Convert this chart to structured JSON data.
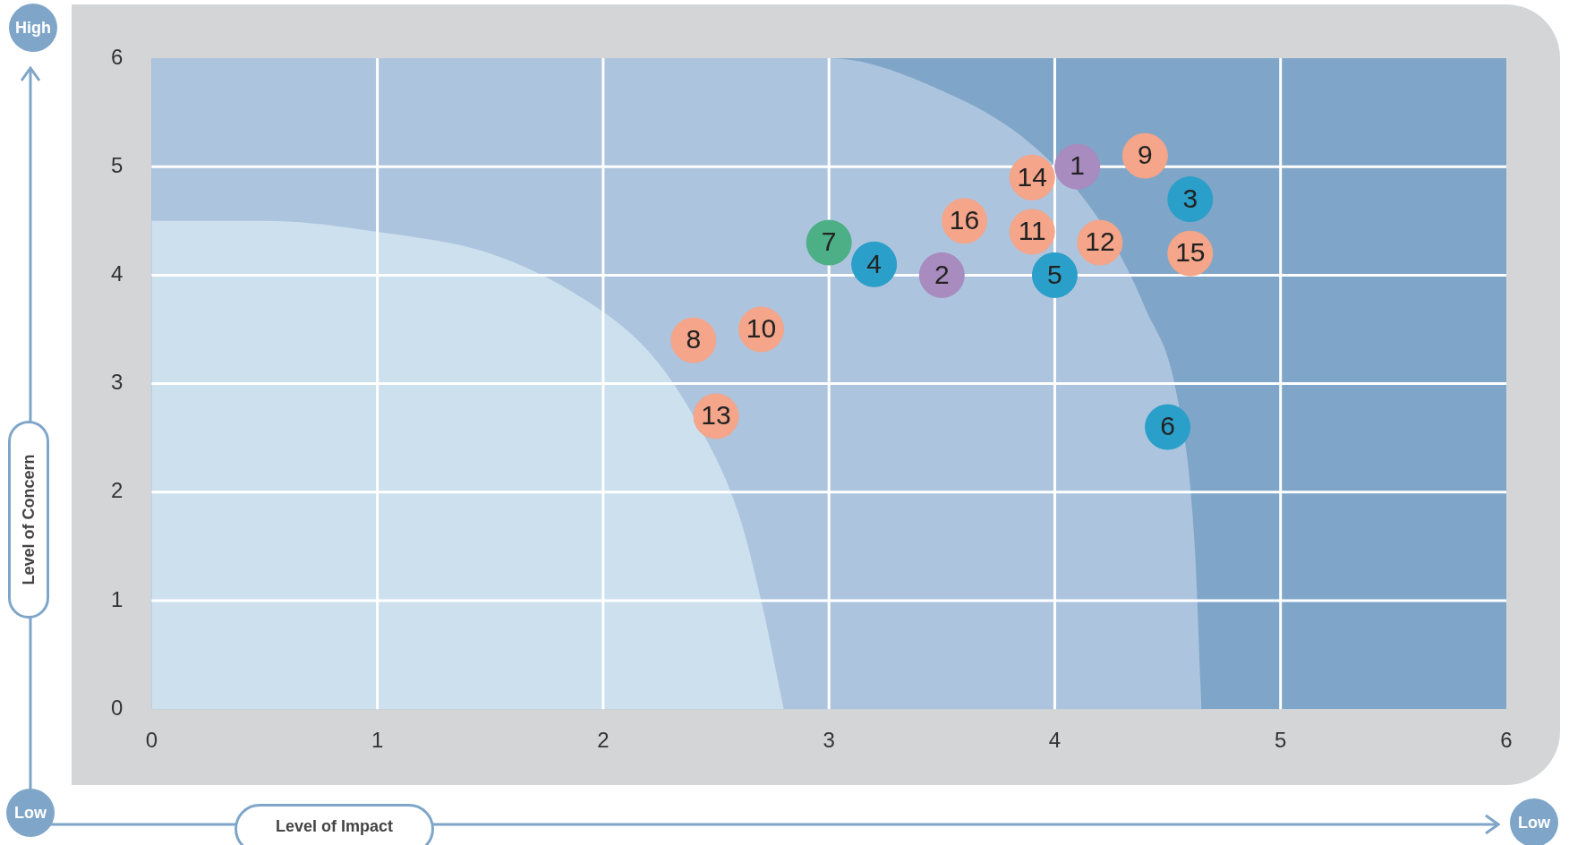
{
  "chart_data": {
    "type": "scatter",
    "xlabel": "Level of Impact",
    "ylabel": "Level of Concern",
    "series": [
      {
        "type": "area",
        "color": "#7fa6c8",
        "x": [
          0,
          6
        ],
        "values": [
          6,
          6
        ]
      },
      {
        "type": "area",
        "color": "#adc4de",
        "x": [
          0,
          3.0,
          3.5,
          3.9,
          4.2,
          4.4,
          4.55,
          4.62,
          4.65
        ],
        "values": [
          6,
          6,
          5.7,
          5.2,
          4.5,
          3.7,
          2.8,
          1.5,
          0
        ]
      },
      {
        "type": "area",
        "color": "#cce0ee",
        "x": [
          0,
          0.5,
          1,
          1.5,
          1.9,
          2.2,
          2.4,
          2.6,
          2.7,
          2.8
        ],
        "values": [
          4.5,
          4.5,
          4.4,
          4.2,
          3.8,
          3.3,
          2.7,
          1.8,
          1,
          0
        ]
      },
      {
        "marker": "circle",
        "x": [
          4.1,
          3.5,
          4.6,
          3.2,
          4.0,
          4.5,
          3.0,
          2.4,
          4.4,
          2.7,
          3.9,
          4.2,
          2.5,
          3.9,
          4.6,
          3.6
        ],
        "values": [
          5.0,
          4.0,
          4.7,
          4.1,
          4.0,
          2.6,
          4.3,
          3.4,
          5.1,
          3.5,
          4.4,
          4.3,
          2.7,
          4.9,
          4.2,
          4.5
        ],
        "colors": [
          "#a88bbf",
          "#a88bbf",
          "#2a9fc9",
          "#2a9fc9",
          "#2a9fc9",
          "#2a9fc9",
          "#4caf85",
          "#f4a58a",
          "#f4a58a",
          "#f4a58a",
          "#f4a58a",
          "#f4a58a",
          "#f4a58a",
          "#f4a58a",
          "#f4a58a",
          "#f4a58a"
        ]
      }
    ],
    "xlim": [
      0,
      6
    ],
    "ylim": [
      0,
      6
    ],
    "xticks": [
      0,
      1,
      2,
      3,
      4,
      5,
      6
    ],
    "yticks": [
      0,
      1,
      2,
      3,
      4,
      5,
      6
    ],
    "grid": true,
    "legend": false,
    "annotations": [
      "High",
      "Low",
      "Low",
      {
        "text": "1",
        "x": 4.1,
        "y": 5.0
      },
      {
        "text": "2",
        "x": 3.5,
        "y": 4.0
      },
      {
        "text": "3",
        "x": 4.6,
        "y": 4.7
      },
      {
        "text": "4",
        "x": 3.2,
        "y": 4.1
      },
      {
        "text": "5",
        "x": 4.0,
        "y": 4.0
      },
      {
        "text": "6",
        "x": 4.5,
        "y": 2.6
      },
      {
        "text": "7",
        "x": 3.0,
        "y": 4.3
      },
      {
        "text": "8",
        "x": 2.4,
        "y": 3.4
      },
      {
        "text": "9",
        "x": 4.4,
        "y": 5.1
      },
      {
        "text": "10",
        "x": 2.7,
        "y": 3.5
      },
      {
        "text": "11",
        "x": 3.9,
        "y": 4.4
      },
      {
        "text": "12",
        "x": 4.2,
        "y": 4.3
      },
      {
        "text": "13",
        "x": 2.5,
        "y": 2.7
      },
      {
        "text": "14",
        "x": 3.9,
        "y": 4.9
      },
      {
        "text": "15",
        "x": 4.6,
        "y": 4.2
      },
      {
        "text": "16",
        "x": 3.6,
        "y": 4.5
      }
    ]
  }
}
